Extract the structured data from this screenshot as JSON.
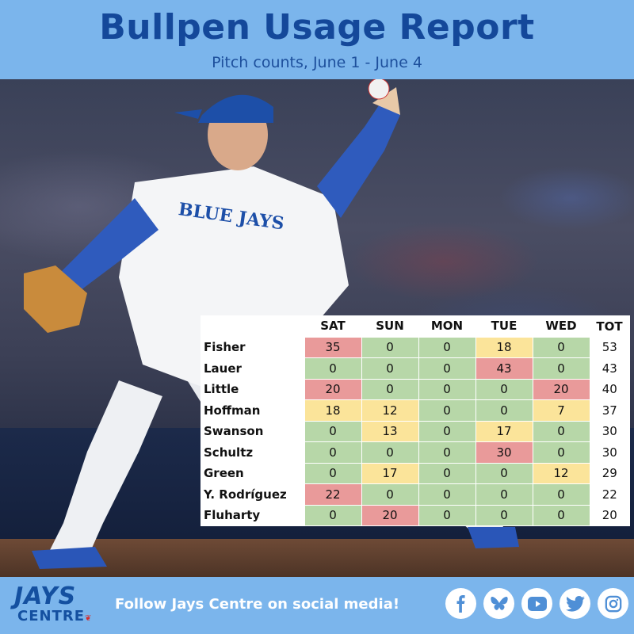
{
  "header": {
    "title": "Bullpen Usage Report",
    "subtitle": "Pitch counts, June 1 - June 4"
  },
  "jersey_text": "BLUE JAYS",
  "table": {
    "columns": [
      "",
      "SAT",
      "SUN",
      "MON",
      "TUE",
      "WED",
      "TOT"
    ],
    "rows": [
      {
        "name": "Fisher",
        "values": [
          35,
          0,
          0,
          18,
          0
        ],
        "colors": [
          "red",
          "green",
          "green",
          "yellow",
          "green"
        ],
        "total": 53
      },
      {
        "name": "Lauer",
        "values": [
          0,
          0,
          0,
          43,
          0
        ],
        "colors": [
          "green",
          "green",
          "green",
          "red",
          "green"
        ],
        "total": 43
      },
      {
        "name": "Little",
        "values": [
          20,
          0,
          0,
          0,
          20
        ],
        "colors": [
          "red",
          "green",
          "green",
          "green",
          "red"
        ],
        "total": 40
      },
      {
        "name": "Hoffman",
        "values": [
          18,
          12,
          0,
          0,
          7
        ],
        "colors": [
          "yellow",
          "yellow",
          "green",
          "green",
          "yellow"
        ],
        "total": 37
      },
      {
        "name": "Swanson",
        "values": [
          0,
          13,
          0,
          17,
          0
        ],
        "colors": [
          "green",
          "yellow",
          "green",
          "yellow",
          "green"
        ],
        "total": 30
      },
      {
        "name": "Schultz",
        "values": [
          0,
          0,
          0,
          30,
          0
        ],
        "colors": [
          "green",
          "green",
          "green",
          "red",
          "green"
        ],
        "total": 30
      },
      {
        "name": "Green",
        "values": [
          0,
          17,
          0,
          0,
          12
        ],
        "colors": [
          "green",
          "yellow",
          "green",
          "green",
          "yellow"
        ],
        "total": 29
      },
      {
        "name": "Y. Rodríguez",
        "values": [
          22,
          0,
          0,
          0,
          0
        ],
        "colors": [
          "red",
          "green",
          "green",
          "green",
          "green"
        ],
        "total": 22
      },
      {
        "name": "Fluharty",
        "values": [
          0,
          20,
          0,
          0,
          0
        ],
        "colors": [
          "green",
          "red",
          "green",
          "green",
          "green"
        ],
        "total": 20
      }
    ]
  },
  "footer": {
    "logo_top": "JAYS",
    "logo_bottom": "CENTRE",
    "follow_text": "Follow Jays Centre on social media!",
    "socials": [
      "facebook-icon",
      "bluesky-icon",
      "youtube-icon",
      "twitter-icon",
      "instagram-icon"
    ]
  },
  "colors": {
    "green": "#b7d7a8",
    "yellow": "#fbe49a",
    "red": "#e99a9a",
    "brand_blue": "#14489a",
    "sky": "#7bb5ec"
  }
}
